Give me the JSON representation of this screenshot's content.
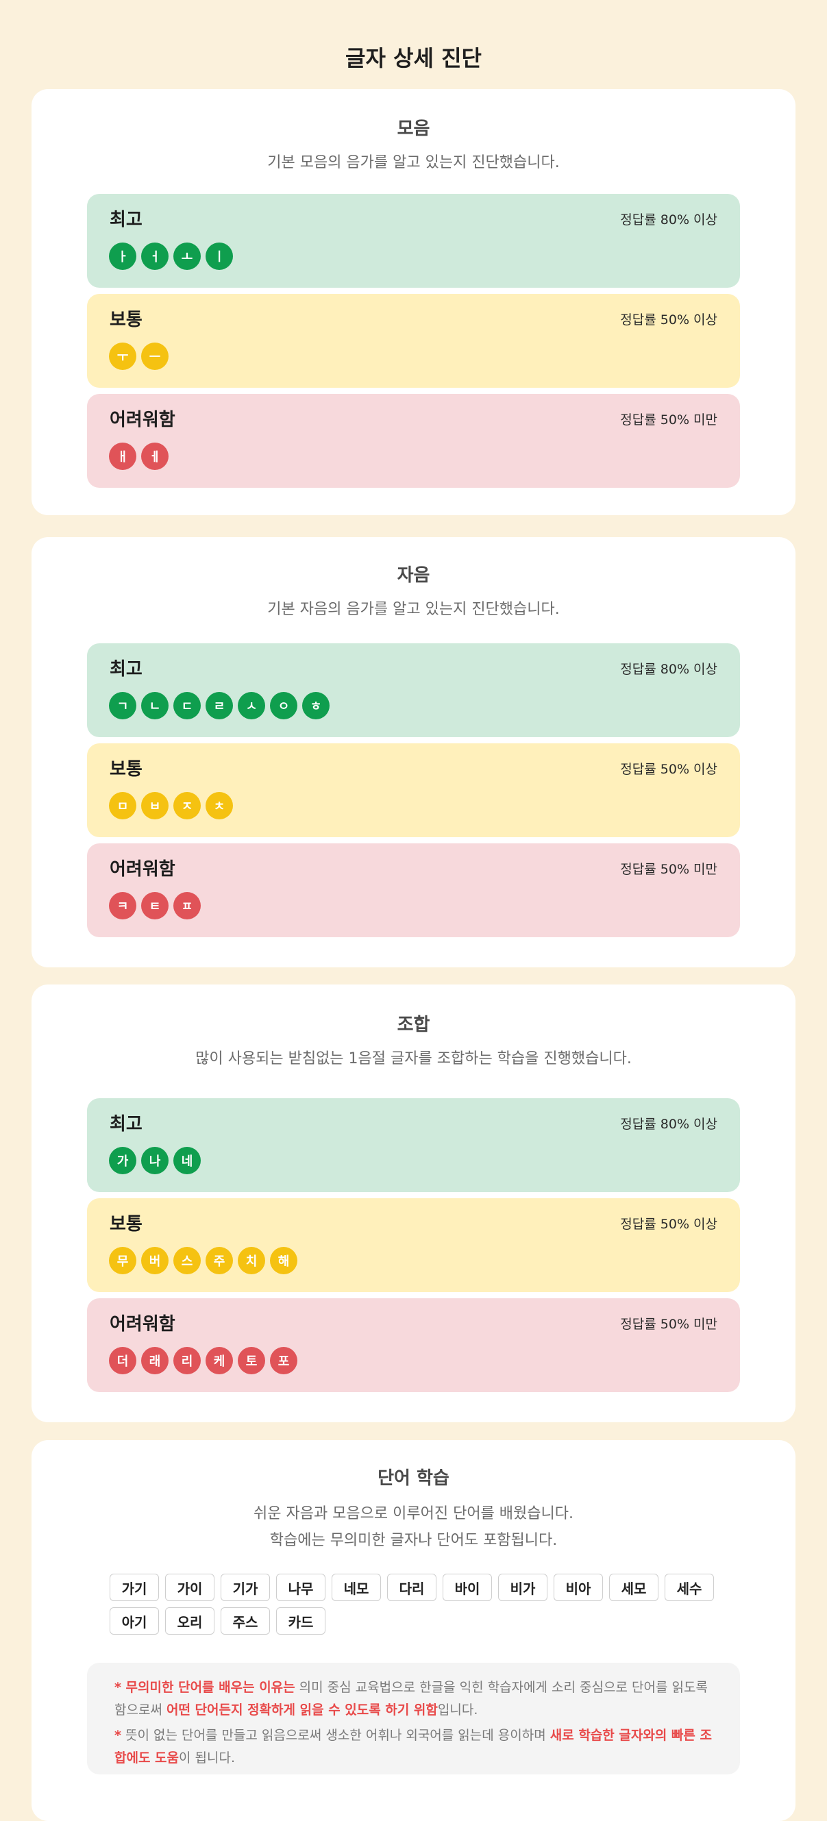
{
  "page_title": "글자 상세 진단",
  "sections": [
    {
      "title": "모음",
      "description": "기본 모음의 음가를 알고 있는지 진단했습니다.",
      "levels": [
        {
          "name": "최고",
          "rate": "정답률 80% 이상",
          "letters": [
            "ㅏ",
            "ㅓ",
            "ㅗ",
            "ㅣ"
          ]
        },
        {
          "name": "보통",
          "rate": "정답률 50% 이상",
          "letters": [
            "ㅜ",
            "ㅡ"
          ]
        },
        {
          "name": "어려워함",
          "rate": "정답률 50% 미만",
          "letters": [
            "ㅐ",
            "ㅔ"
          ]
        }
      ]
    },
    {
      "title": "자음",
      "description": "기본 자음의 음가를 알고 있는지 진단했습니다.",
      "levels": [
        {
          "name": "최고",
          "rate": "정답률 80% 이상",
          "letters": [
            "ㄱ",
            "ㄴ",
            "ㄷ",
            "ㄹ",
            "ㅅ",
            "ㅇ",
            "ㅎ"
          ]
        },
        {
          "name": "보통",
          "rate": "정답률 50% 이상",
          "letters": [
            "ㅁ",
            "ㅂ",
            "ㅈ",
            "ㅊ"
          ]
        },
        {
          "name": "어려워함",
          "rate": "정답률 50% 미만",
          "letters": [
            "ㅋ",
            "ㅌ",
            "ㅍ"
          ]
        }
      ]
    },
    {
      "title": "조합",
      "description": "많이 사용되는 받침없는 1음절 글자를 조합하는 학습을 진행했습니다.",
      "levels": [
        {
          "name": "최고",
          "rate": "정답률 80% 이상",
          "letters": [
            "가",
            "나",
            "네"
          ]
        },
        {
          "name": "보통",
          "rate": "정답률 50% 이상",
          "letters": [
            "무",
            "버",
            "스",
            "주",
            "치",
            "해"
          ]
        },
        {
          "name": "어려워함",
          "rate": "정답률 50% 미만",
          "letters": [
            "더",
            "래",
            "리",
            "케",
            "토",
            "포"
          ]
        }
      ]
    }
  ],
  "word_section": {
    "title": "단어 학습",
    "description_line1": "쉬운 자음과 모음으로 이루어진 단어를 배웠습니다.",
    "description_line2": "학습에는 무의미한 글자나 단어도 포함됩니다.",
    "words": [
      "가기",
      "가이",
      "기가",
      "나무",
      "네모",
      "다리",
      "바이",
      "비가",
      "비아",
      "세모",
      "세수",
      "아기",
      "오리",
      "주스",
      "카드"
    ],
    "notes": [
      {
        "prefix_highlight": "* 무의미한 단어를 배우는 이유는",
        "text1": " 의미 중심 교육법으로 한글을 익힌 학습자에게 소리 중심으로 단어를 읽도록 함으로써 ",
        "highlight": "어떤 단어든지 정확하게 읽을 수 있도록 하기 위함",
        "text2": "입니다."
      },
      {
        "prefix_highlight": "*",
        "text1": " 뜻이 없는 단어를 만들고 읽음으로써 생소한 어휘나 외국어를 읽는데 용이하며 ",
        "highlight": "새로 학습한 글자와의 빠른 조합에도 도움",
        "text2": "이 됩니다."
      }
    ]
  },
  "colors": {
    "background": "#fbf1dc",
    "best": "#0f9e4e",
    "normal": "#f5c211",
    "hard": "#e05358",
    "highlight": "#e84a4a"
  }
}
